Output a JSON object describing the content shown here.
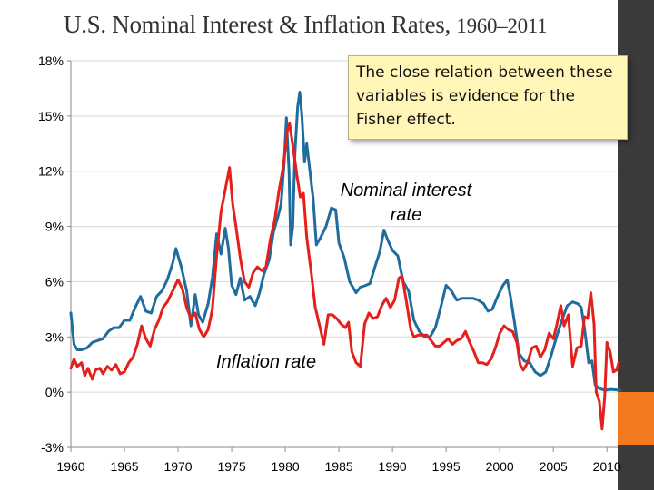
{
  "slide": {
    "title_main": "U.S. Nominal Interest & Inflation Rates,",
    "title_range": "1960–2011",
    "callout_text": "The close relation between these variables is evidence for the Fisher effect."
  },
  "colors": {
    "nominal": "#1f6c9e",
    "inflation": "#e3201c",
    "sidebar": "#3a3a3a",
    "accent": "#f47a20",
    "callout_bg": "#fff6b8"
  },
  "chart_data": {
    "type": "line",
    "title": "U.S. Nominal Interest & Inflation Rates, 1960–2011",
    "xlabel": "",
    "ylabel": "",
    "xlim": [
      1960,
      2011
    ],
    "ylim": [
      -3,
      18
    ],
    "x_ticks": [
      1960,
      1965,
      1970,
      1975,
      1980,
      1985,
      1990,
      1995,
      2000,
      2005,
      2010
    ],
    "x_tick_labels": [
      "1960",
      "1965",
      "1970",
      "1975",
      "1980",
      "1985",
      "1990",
      "1995",
      "2000",
      "2005",
      "2010"
    ],
    "y_ticks": [
      -3,
      0,
      3,
      6,
      9,
      12,
      15,
      18
    ],
    "y_tick_labels": [
      "-3%",
      "0%",
      "3%",
      "6%",
      "9%",
      "12%",
      "15%",
      "18%"
    ],
    "annotations": [
      {
        "text": "Nominal interest rate",
        "series": "Nominal interest rate"
      },
      {
        "text": "Inflation rate",
        "series": "Inflation rate"
      }
    ],
    "series": [
      {
        "name": "Nominal interest rate",
        "color": "#1f6c9e",
        "points": [
          [
            1960.0,
            4.3
          ],
          [
            1960.3,
            2.6
          ],
          [
            1960.6,
            2.3
          ],
          [
            1961.0,
            2.3
          ],
          [
            1961.5,
            2.4
          ],
          [
            1962.0,
            2.7
          ],
          [
            1962.5,
            2.8
          ],
          [
            1963.0,
            2.9
          ],
          [
            1963.5,
            3.3
          ],
          [
            1964.0,
            3.5
          ],
          [
            1964.5,
            3.5
          ],
          [
            1965.0,
            3.9
          ],
          [
            1965.5,
            3.9
          ],
          [
            1966.0,
            4.6
          ],
          [
            1966.5,
            5.2
          ],
          [
            1967.0,
            4.4
          ],
          [
            1967.5,
            4.3
          ],
          [
            1968.0,
            5.2
          ],
          [
            1968.5,
            5.5
          ],
          [
            1969.0,
            6.1
          ],
          [
            1969.5,
            7.0
          ],
          [
            1969.8,
            7.8
          ],
          [
            1970.3,
            6.8
          ],
          [
            1970.8,
            5.5
          ],
          [
            1971.2,
            3.6
          ],
          [
            1971.6,
            5.3
          ],
          [
            1971.9,
            4.2
          ],
          [
            1972.3,
            3.8
          ],
          [
            1972.8,
            4.8
          ],
          [
            1973.2,
            6.2
          ],
          [
            1973.6,
            8.6
          ],
          [
            1974.0,
            7.5
          ],
          [
            1974.4,
            8.9
          ],
          [
            1974.7,
            7.8
          ],
          [
            1975.0,
            5.8
          ],
          [
            1975.4,
            5.3
          ],
          [
            1975.8,
            6.2
          ],
          [
            1976.2,
            5.0
          ],
          [
            1976.7,
            5.2
          ],
          [
            1977.2,
            4.7
          ],
          [
            1977.6,
            5.4
          ],
          [
            1978.0,
            6.4
          ],
          [
            1978.5,
            7.2
          ],
          [
            1978.9,
            8.7
          ],
          [
            1979.3,
            9.5
          ],
          [
            1979.6,
            10.2
          ],
          [
            1979.9,
            12.5
          ],
          [
            1980.1,
            14.9
          ],
          [
            1980.35,
            12.0
          ],
          [
            1980.5,
            8.0
          ],
          [
            1980.7,
            9.0
          ],
          [
            1980.9,
            13.0
          ],
          [
            1981.15,
            15.5
          ],
          [
            1981.35,
            16.3
          ],
          [
            1981.55,
            15.0
          ],
          [
            1981.8,
            12.5
          ],
          [
            1982.0,
            13.5
          ],
          [
            1982.3,
            12.0
          ],
          [
            1982.6,
            10.5
          ],
          [
            1982.9,
            8.0
          ],
          [
            1983.3,
            8.4
          ],
          [
            1983.8,
            9.0
          ],
          [
            1984.3,
            10.0
          ],
          [
            1984.7,
            9.9
          ],
          [
            1985.0,
            8.1
          ],
          [
            1985.5,
            7.3
          ],
          [
            1986.0,
            6.0
          ],
          [
            1986.6,
            5.4
          ],
          [
            1987.0,
            5.7
          ],
          [
            1987.5,
            5.8
          ],
          [
            1987.9,
            5.9
          ],
          [
            1988.3,
            6.7
          ],
          [
            1988.8,
            7.6
          ],
          [
            1989.2,
            8.8
          ],
          [
            1989.6,
            8.2
          ],
          [
            1990.0,
            7.7
          ],
          [
            1990.5,
            7.4
          ],
          [
            1991.0,
            6.0
          ],
          [
            1991.5,
            5.5
          ],
          [
            1992.0,
            3.9
          ],
          [
            1992.5,
            3.3
          ],
          [
            1993.0,
            3.0
          ],
          [
            1993.5,
            3.0
          ],
          [
            1994.0,
            3.5
          ],
          [
            1994.5,
            4.6
          ],
          [
            1995.0,
            5.8
          ],
          [
            1995.5,
            5.5
          ],
          [
            1996.0,
            5.0
          ],
          [
            1996.5,
            5.1
          ],
          [
            1997.0,
            5.1
          ],
          [
            1997.5,
            5.1
          ],
          [
            1998.0,
            5.0
          ],
          [
            1998.5,
            4.8
          ],
          [
            1998.9,
            4.4
          ],
          [
            1999.3,
            4.5
          ],
          [
            1999.8,
            5.2
          ],
          [
            2000.3,
            5.8
          ],
          [
            2000.7,
            6.1
          ],
          [
            2001.0,
            5.2
          ],
          [
            2001.4,
            3.7
          ],
          [
            2001.8,
            2.1
          ],
          [
            2002.3,
            1.7
          ],
          [
            2002.8,
            1.6
          ],
          [
            2003.3,
            1.1
          ],
          [
            2003.8,
            0.9
          ],
          [
            2004.3,
            1.1
          ],
          [
            2004.8,
            2.0
          ],
          [
            2005.3,
            3.0
          ],
          [
            2005.8,
            3.9
          ],
          [
            2006.3,
            4.7
          ],
          [
            2006.8,
            4.9
          ],
          [
            2007.3,
            4.8
          ],
          [
            2007.6,
            4.6
          ],
          [
            2007.9,
            3.5
          ],
          [
            2008.3,
            1.6
          ],
          [
            2008.6,
            1.7
          ],
          [
            2008.9,
            0.4
          ],
          [
            2009.3,
            0.2
          ],
          [
            2009.8,
            0.1
          ],
          [
            2010.3,
            0.15
          ],
          [
            2010.8,
            0.13
          ],
          [
            2011.2,
            0.1
          ]
        ]
      },
      {
        "name": "Inflation rate",
        "color": "#e3201c",
        "points": [
          [
            1960.0,
            1.3
          ],
          [
            1960.3,
            1.8
          ],
          [
            1960.6,
            1.4
          ],
          [
            1961.0,
            1.6
          ],
          [
            1961.3,
            0.9
          ],
          [
            1961.6,
            1.3
          ],
          [
            1962.0,
            0.7
          ],
          [
            1962.3,
            1.2
          ],
          [
            1962.7,
            1.3
          ],
          [
            1963.0,
            1.0
          ],
          [
            1963.4,
            1.4
          ],
          [
            1963.8,
            1.2
          ],
          [
            1964.2,
            1.5
          ],
          [
            1964.6,
            1.0
          ],
          [
            1965.0,
            1.1
          ],
          [
            1965.4,
            1.6
          ],
          [
            1965.8,
            1.9
          ],
          [
            1966.2,
            2.6
          ],
          [
            1966.6,
            3.6
          ],
          [
            1967.0,
            2.9
          ],
          [
            1967.4,
            2.5
          ],
          [
            1967.8,
            3.4
          ],
          [
            1968.2,
            3.9
          ],
          [
            1968.6,
            4.6
          ],
          [
            1969.0,
            4.9
          ],
          [
            1969.5,
            5.5
          ],
          [
            1970.0,
            6.1
          ],
          [
            1970.4,
            5.6
          ],
          [
            1970.8,
            4.6
          ],
          [
            1971.2,
            4.0
          ],
          [
            1971.6,
            4.3
          ],
          [
            1972.0,
            3.4
          ],
          [
            1972.4,
            3.0
          ],
          [
            1972.8,
            3.4
          ],
          [
            1973.2,
            4.5
          ],
          [
            1973.6,
            7.4
          ],
          [
            1974.0,
            9.8
          ],
          [
            1974.4,
            11.0
          ],
          [
            1974.8,
            12.2
          ],
          [
            1975.1,
            10.2
          ],
          [
            1975.4,
            9.0
          ],
          [
            1975.8,
            7.3
          ],
          [
            1976.2,
            6.0
          ],
          [
            1976.6,
            5.7
          ],
          [
            1977.0,
            6.5
          ],
          [
            1977.4,
            6.8
          ],
          [
            1977.8,
            6.6
          ],
          [
            1978.2,
            6.8
          ],
          [
            1978.6,
            8.3
          ],
          [
            1979.0,
            9.3
          ],
          [
            1979.4,
            10.9
          ],
          [
            1979.8,
            12.2
          ],
          [
            1980.2,
            14.2
          ],
          [
            1980.4,
            14.6
          ],
          [
            1980.8,
            13.0
          ],
          [
            1981.1,
            11.7
          ],
          [
            1981.4,
            10.6
          ],
          [
            1981.7,
            10.8
          ],
          [
            1982.0,
            8.4
          ],
          [
            1982.4,
            6.6
          ],
          [
            1982.8,
            4.6
          ],
          [
            1983.2,
            3.6
          ],
          [
            1983.6,
            2.6
          ],
          [
            1984.0,
            4.2
          ],
          [
            1984.4,
            4.2
          ],
          [
            1984.8,
            4.0
          ],
          [
            1985.2,
            3.7
          ],
          [
            1985.6,
            3.5
          ],
          [
            1985.9,
            3.8
          ],
          [
            1986.2,
            2.2
          ],
          [
            1986.6,
            1.6
          ],
          [
            1987.0,
            1.4
          ],
          [
            1987.4,
            3.7
          ],
          [
            1987.8,
            4.3
          ],
          [
            1988.2,
            4.0
          ],
          [
            1988.6,
            4.1
          ],
          [
            1989.0,
            4.7
          ],
          [
            1989.4,
            5.1
          ],
          [
            1989.8,
            4.6
          ],
          [
            1990.2,
            5.0
          ],
          [
            1990.6,
            6.2
          ],
          [
            1990.9,
            6.3
          ],
          [
            1991.3,
            4.9
          ],
          [
            1991.7,
            3.4
          ],
          [
            1992.0,
            3.0
          ],
          [
            1992.4,
            3.1
          ],
          [
            1992.8,
            3.1
          ],
          [
            1993.2,
            3.1
          ],
          [
            1993.6,
            2.8
          ],
          [
            1994.0,
            2.5
          ],
          [
            1994.4,
            2.5
          ],
          [
            1994.8,
            2.7
          ],
          [
            1995.2,
            2.9
          ],
          [
            1995.6,
            2.6
          ],
          [
            1996.0,
            2.8
          ],
          [
            1996.4,
            2.9
          ],
          [
            1996.8,
            3.3
          ],
          [
            1997.2,
            2.7
          ],
          [
            1997.6,
            2.2
          ],
          [
            1998.0,
            1.6
          ],
          [
            1998.4,
            1.6
          ],
          [
            1998.8,
            1.5
          ],
          [
            1999.2,
            1.8
          ],
          [
            1999.6,
            2.4
          ],
          [
            2000.0,
            3.2
          ],
          [
            2000.4,
            3.6
          ],
          [
            2000.8,
            3.4
          ],
          [
            2001.2,
            3.3
          ],
          [
            2001.6,
            2.7
          ],
          [
            2001.9,
            1.5
          ],
          [
            2002.2,
            1.2
          ],
          [
            2002.6,
            1.6
          ],
          [
            2003.0,
            2.4
          ],
          [
            2003.4,
            2.5
          ],
          [
            2003.8,
            1.9
          ],
          [
            2004.2,
            2.3
          ],
          [
            2004.6,
            3.2
          ],
          [
            2005.0,
            2.9
          ],
          [
            2005.3,
            3.6
          ],
          [
            2005.7,
            4.7
          ],
          [
            2006.0,
            3.6
          ],
          [
            2006.4,
            4.2
          ],
          [
            2006.8,
            1.4
          ],
          [
            2007.2,
            2.4
          ],
          [
            2007.6,
            2.5
          ],
          [
            2007.9,
            4.1
          ],
          [
            2008.2,
            4.0
          ],
          [
            2008.5,
            5.4
          ],
          [
            2008.8,
            3.7
          ],
          [
            2009.0,
            0.0
          ],
          [
            2009.3,
            -0.5
          ],
          [
            2009.55,
            -2.0
          ],
          [
            2009.8,
            -0.2
          ],
          [
            2010.0,
            2.7
          ],
          [
            2010.3,
            2.2
          ],
          [
            2010.6,
            1.1
          ],
          [
            2010.9,
            1.2
          ],
          [
            2011.1,
            1.6
          ]
        ]
      }
    ]
  }
}
